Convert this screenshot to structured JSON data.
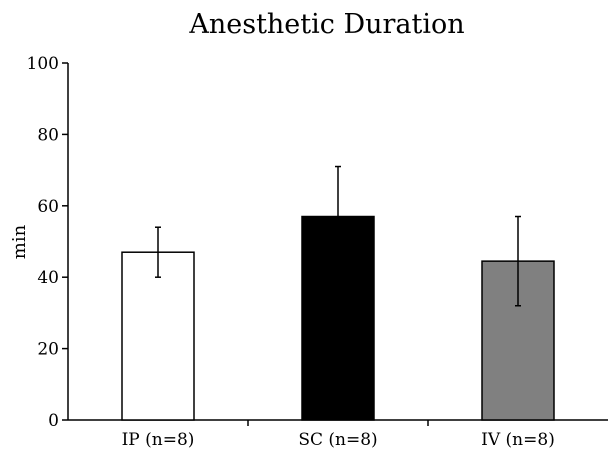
{
  "chart_data": {
    "type": "bar",
    "title": "Anesthetic Duration",
    "xlabel": "",
    "ylabel": "min",
    "ylim": [
      0,
      100
    ],
    "yticks": [
      0,
      20,
      40,
      60,
      80,
      100
    ],
    "categories": [
      "IP (n=8)",
      "SC (n=8)",
      "IV (n=8)"
    ],
    "values": [
      47,
      57,
      44.5
    ],
    "error": [
      7,
      14,
      12.5
    ],
    "colors": [
      "#ffffff",
      "#000000",
      "#808080"
    ],
    "grid": false,
    "legend": "none"
  }
}
